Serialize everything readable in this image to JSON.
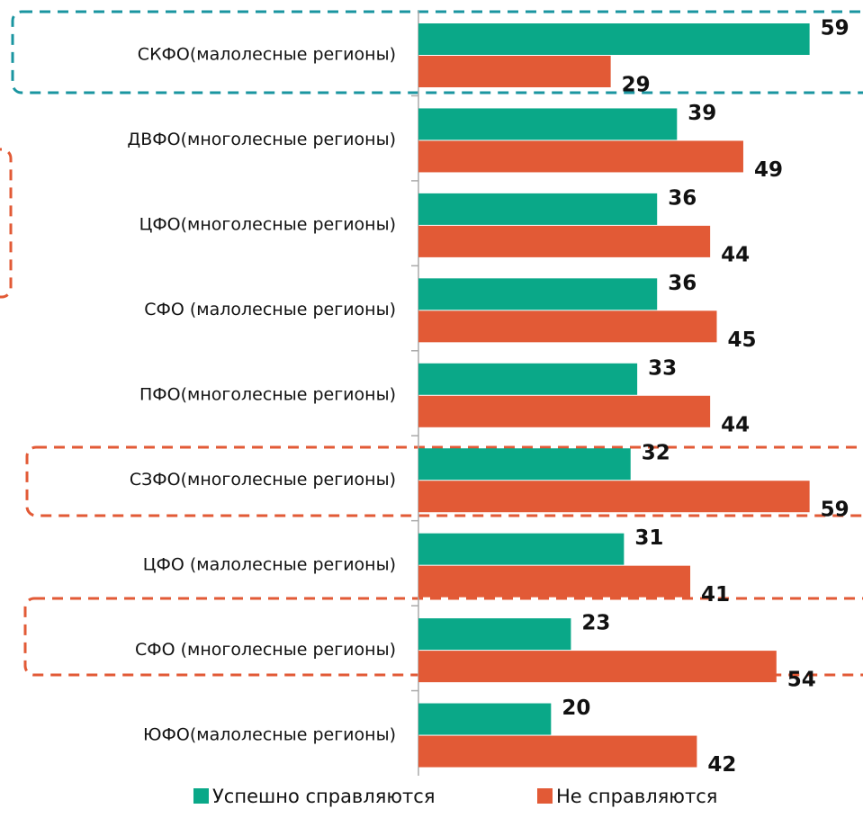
{
  "chart_data": {
    "type": "bar",
    "orientation": "horizontal",
    "categories": [
      "СКФО(малолесные регионы)",
      "ДВФО(многолесные регионы)",
      "ЦФО(многолесные регионы)",
      "СФО (малолесные регионы)",
      "ПФО(многолесные регионы)",
      "СЗФО(многолесные регионы)",
      "ЦФО (малолесные регионы)",
      "СФО (многолесные регионы)",
      "ЮФО(малолесные регионы)"
    ],
    "series": [
      {
        "name": "Успешно справляются",
        "color": "#0aa888",
        "values": [
          59,
          39,
          36,
          36,
          33,
          32,
          31,
          23,
          20
        ]
      },
      {
        "name": "Не справляются",
        "color": "#e25a36",
        "values": [
          29,
          49,
          44,
          45,
          44,
          59,
          41,
          54,
          42
        ]
      }
    ],
    "xlim": [
      0,
      60
    ],
    "legend": "bottom"
  }
}
